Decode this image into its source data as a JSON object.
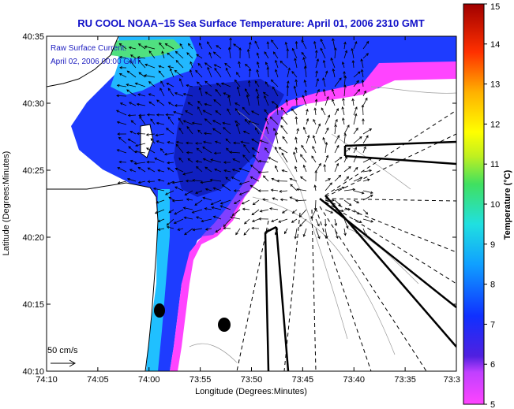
{
  "title": "RU COOL  NOAA−15  Sea Surface Temperature:  April 01, 2006 2310 GMT",
  "current_label": "Raw Surface Current:",
  "current_time": "April 02, 2006 00:00 GMT",
  "scale_label": "50 cm/s",
  "xlabel": "Longitude (Degrees:Minutes)",
  "ylabel": "Latitude (Degrees:Minutes)",
  "colorbar_label": "Temperature (°C)",
  "x_ticks": [
    "74:10",
    "74:05",
    "74:00",
    "73:55",
    "73:50",
    "73:45",
    "73:40",
    "73:35",
    "73:3"
  ],
  "y_ticks": [
    "40:35",
    "40:30",
    "40:25",
    "40:20",
    "40:15",
    "40:10"
  ],
  "colorbar_ticks": [
    "15",
    "14",
    "13",
    "12",
    "11",
    "10",
    "9",
    "8",
    "7",
    "6",
    "5"
  ],
  "colors": {
    "title": "#1010c8",
    "land": "#ffffff",
    "sst_cold": "#ff33ff",
    "sst_warm": "#b00000"
  }
}
